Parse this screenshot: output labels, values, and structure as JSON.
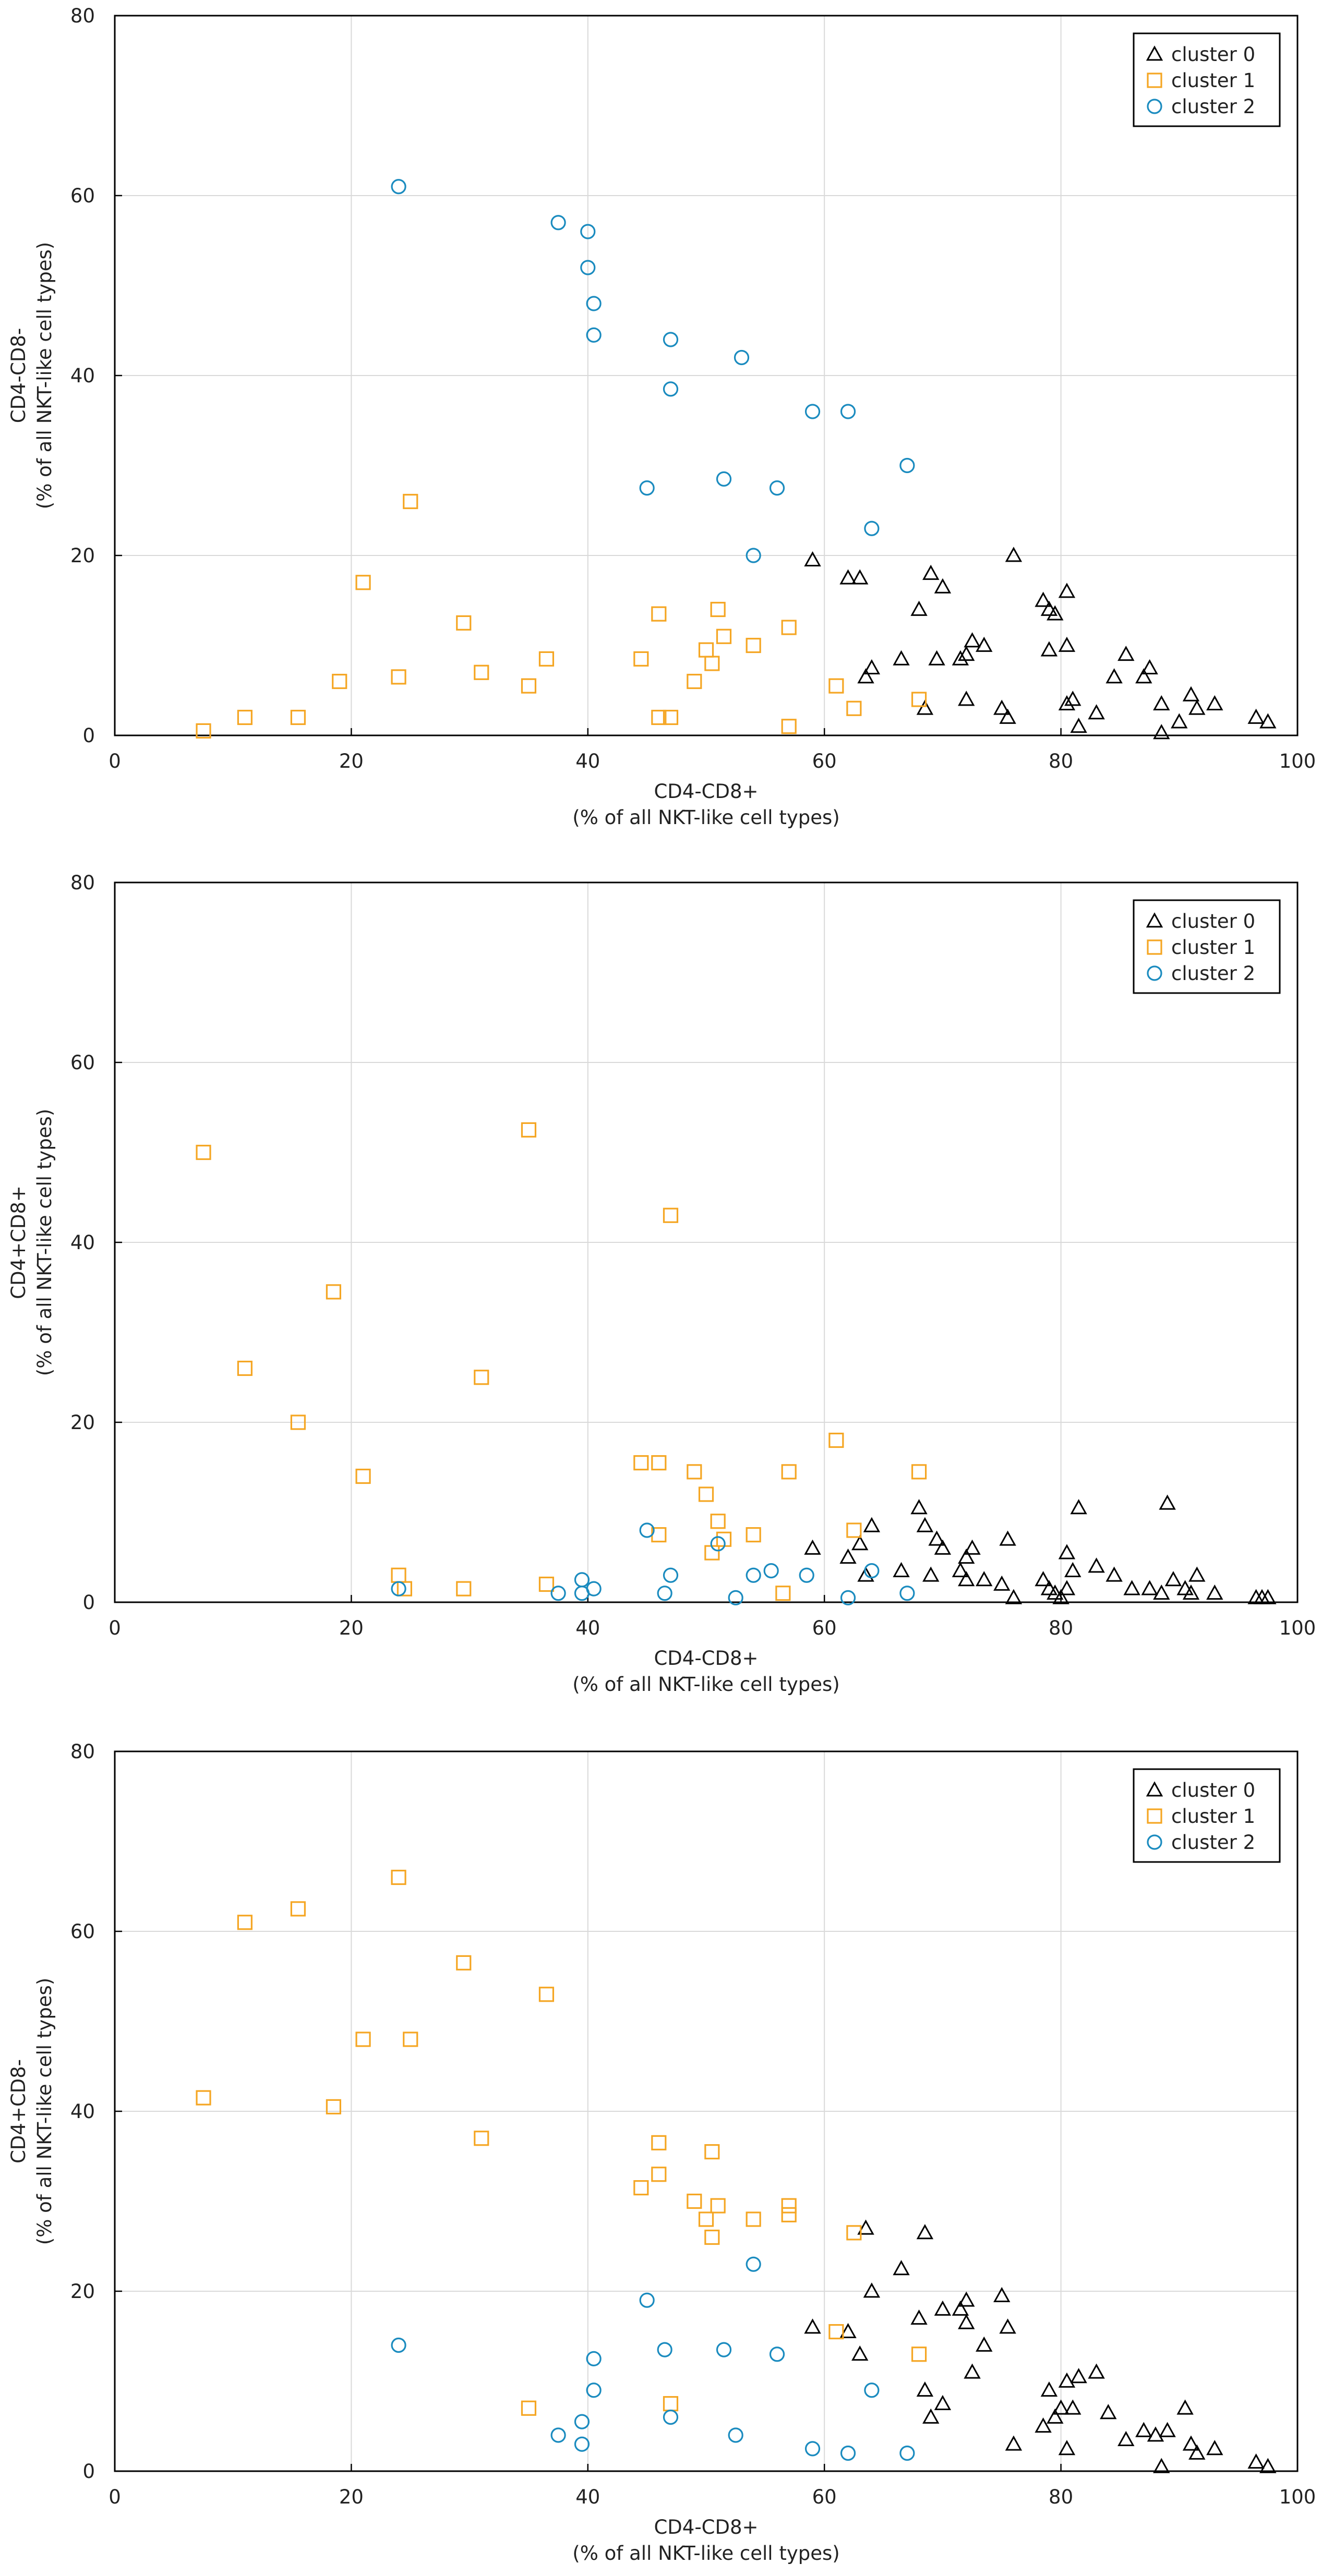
{
  "colors": {
    "cluster_0": "#000000",
    "cluster_1": "#f5a623",
    "cluster_2": "#1a8bbf",
    "grid": "#d9d9d9",
    "axis": "#000000"
  },
  "chart_data": [
    {
      "type": "scatter",
      "xlabel_line1": "CD4-CD8+",
      "xlabel_line2": "(% of all NKT-like cell types)",
      "ylabel_line1": "CD4-CD8-",
      "ylabel_line2": "(% of all NKT-like cell types)",
      "xlim": [
        0,
        100
      ],
      "ylim": [
        0,
        80
      ],
      "xticks": [
        0,
        20,
        40,
        60,
        80,
        100
      ],
      "yticks": [
        0,
        20,
        40,
        60,
        80
      ],
      "grid": true,
      "legend_position": "top-right",
      "series": [
        {
          "name": "cluster 0",
          "marker": "triangle",
          "points": [
            [
              59,
              19.5
            ],
            [
              62,
              17.5
            ],
            [
              63,
              17.5
            ],
            [
              63.5,
              6.5
            ],
            [
              64,
              7.5
            ],
            [
              66.5,
              8.5
            ],
            [
              68,
              14
            ],
            [
              68.5,
              3
            ],
            [
              69,
              18
            ],
            [
              69.5,
              8.5
            ],
            [
              70,
              16.5
            ],
            [
              71.5,
              8.5
            ],
            [
              72,
              9
            ],
            [
              72,
              4
            ],
            [
              72.5,
              10.5
            ],
            [
              73.5,
              10
            ],
            [
              75,
              3
            ],
            [
              75.5,
              2
            ],
            [
              76,
              20
            ],
            [
              78.5,
              15
            ],
            [
              79,
              14
            ],
            [
              79,
              9.5
            ],
            [
              79.5,
              13.5
            ],
            [
              80.5,
              10
            ],
            [
              80.5,
              16
            ],
            [
              80.5,
              3.5
            ],
            [
              81,
              4
            ],
            [
              81.5,
              1
            ],
            [
              83,
              2.5
            ],
            [
              84.5,
              6.5
            ],
            [
              85.5,
              9
            ],
            [
              87,
              6.5
            ],
            [
              87.5,
              7.5
            ],
            [
              88.5,
              0.3
            ],
            [
              88.5,
              3.5
            ],
            [
              90,
              1.5
            ],
            [
              91,
              4.5
            ],
            [
              91.5,
              3
            ],
            [
              93,
              3.5
            ],
            [
              96.5,
              2
            ],
            [
              97.5,
              1.5
            ]
          ]
        },
        {
          "name": "cluster 1",
          "marker": "square",
          "points": [
            [
              7.5,
              0.5
            ],
            [
              11,
              2
            ],
            [
              15.5,
              2
            ],
            [
              19,
              6
            ],
            [
              21,
              17
            ],
            [
              24,
              6.5
            ],
            [
              25,
              26
            ],
            [
              29.5,
              12.5
            ],
            [
              31,
              7
            ],
            [
              35,
              5.5
            ],
            [
              36.5,
              8.5
            ],
            [
              44.5,
              8.5
            ],
            [
              46,
              13.5
            ],
            [
              46,
              2
            ],
            [
              47,
              2
            ],
            [
              49,
              6
            ],
            [
              50,
              9.5
            ],
            [
              50.5,
              8
            ],
            [
              51,
              14
            ],
            [
              51.5,
              11
            ],
            [
              54,
              10
            ],
            [
              57,
              12
            ],
            [
              57,
              1
            ],
            [
              61,
              5.5
            ],
            [
              62.5,
              3
            ],
            [
              68,
              4
            ]
          ]
        },
        {
          "name": "cluster 2",
          "marker": "circle",
          "points": [
            [
              24,
              61
            ],
            [
              37.5,
              57
            ],
            [
              40,
              56
            ],
            [
              40,
              52
            ],
            [
              40.5,
              48
            ],
            [
              40.5,
              44.5
            ],
            [
              45,
              27.5
            ],
            [
              47,
              44
            ],
            [
              47,
              38.5
            ],
            [
              51.5,
              28.5
            ],
            [
              53,
              42
            ],
            [
              54,
              20
            ],
            [
              56,
              27.5
            ],
            [
              59,
              36
            ],
            [
              62,
              36
            ],
            [
              64,
              23
            ],
            [
              67,
              30
            ]
          ]
        }
      ]
    },
    {
      "type": "scatter",
      "xlabel_line1": "CD4-CD8+",
      "xlabel_line2": "(% of all NKT-like cell types)",
      "ylabel_line1": "CD4+CD8+",
      "ylabel_line2": "(% of all NKT-like cell types)",
      "xlim": [
        0,
        100
      ],
      "ylim": [
        0,
        80
      ],
      "xticks": [
        0,
        20,
        40,
        60,
        80,
        100
      ],
      "yticks": [
        0,
        20,
        40,
        60,
        80
      ],
      "grid": true,
      "legend_position": "top-right",
      "series": [
        {
          "name": "cluster 0",
          "marker": "triangle",
          "points": [
            [
              59,
              6
            ],
            [
              62,
              5
            ],
            [
              63,
              6.5
            ],
            [
              63.5,
              3
            ],
            [
              64,
              8.5
            ],
            [
              66.5,
              3.5
            ],
            [
              68,
              10.5
            ],
            [
              68.5,
              8.5
            ],
            [
              69,
              3
            ],
            [
              69.5,
              7
            ],
            [
              70,
              6
            ],
            [
              71.5,
              3.5
            ],
            [
              72,
              2.5
            ],
            [
              72,
              5
            ],
            [
              72.5,
              6
            ],
            [
              73.5,
              2.5
            ],
            [
              75,
              2
            ],
            [
              75.5,
              7
            ],
            [
              76,
              0.5
            ],
            [
              78.5,
              2.5
            ],
            [
              79,
              1.5
            ],
            [
              79.5,
              1
            ],
            [
              80,
              0.5
            ],
            [
              80.5,
              5.5
            ],
            [
              80.5,
              1.5
            ],
            [
              81,
              3.5
            ],
            [
              81.5,
              10.5
            ],
            [
              83,
              4
            ],
            [
              84.5,
              3
            ],
            [
              86,
              1.5
            ],
            [
              87.5,
              1.5
            ],
            [
              88.5,
              1
            ],
            [
              89,
              11
            ],
            [
              89.5,
              2.5
            ],
            [
              90.5,
              1.5
            ],
            [
              91,
              1
            ],
            [
              91.5,
              3
            ],
            [
              93,
              1
            ],
            [
              96.5,
              0.5
            ],
            [
              97,
              0.5
            ],
            [
              97.5,
              0.5
            ]
          ]
        },
        {
          "name": "cluster 1",
          "marker": "square",
          "points": [
            [
              7.5,
              50
            ],
            [
              11,
              26
            ],
            [
              15.5,
              20
            ],
            [
              18.5,
              34.5
            ],
            [
              21,
              14
            ],
            [
              24,
              3
            ],
            [
              24.5,
              1.5
            ],
            [
              29.5,
              1.5
            ],
            [
              31,
              25
            ],
            [
              35,
              52.5
            ],
            [
              36.5,
              2
            ],
            [
              44.5,
              15.5
            ],
            [
              46,
              15.5
            ],
            [
              46,
              7.5
            ],
            [
              47,
              43
            ],
            [
              49,
              14.5
            ],
            [
              50,
              12
            ],
            [
              50.5,
              5.5
            ],
            [
              51,
              9
            ],
            [
              51.5,
              7
            ],
            [
              54,
              7.5
            ],
            [
              56.5,
              1
            ],
            [
              57,
              14.5
            ],
            [
              61,
              18
            ],
            [
              62.5,
              8
            ],
            [
              68,
              14.5
            ]
          ]
        },
        {
          "name": "cluster 2",
          "marker": "circle",
          "points": [
            [
              24,
              1.5
            ],
            [
              37.5,
              1
            ],
            [
              39.5,
              2.5
            ],
            [
              39.5,
              1
            ],
            [
              40.5,
              1.5
            ],
            [
              45,
              8
            ],
            [
              46.5,
              1
            ],
            [
              47,
              3
            ],
            [
              51,
              6.5
            ],
            [
              52.5,
              0.5
            ],
            [
              54,
              3
            ],
            [
              55.5,
              3.5
            ],
            [
              58.5,
              3
            ],
            [
              62,
              0.5
            ],
            [
              64,
              3.5
            ],
            [
              67,
              1
            ]
          ]
        }
      ]
    },
    {
      "type": "scatter",
      "xlabel_line1": "CD4-CD8+",
      "xlabel_line2": "(% of all NKT-like cell types)",
      "ylabel_line1": "CD4+CD8-",
      "ylabel_line2": "(% of all NKT-like cell types)",
      "xlim": [
        0,
        100
      ],
      "ylim": [
        0,
        80
      ],
      "xticks": [
        0,
        20,
        40,
        60,
        80,
        100
      ],
      "yticks": [
        0,
        20,
        40,
        60,
        80
      ],
      "grid": true,
      "legend_position": "top-right",
      "series": [
        {
          "name": "cluster 0",
          "marker": "triangle",
          "points": [
            [
              59,
              16
            ],
            [
              62,
              15.5
            ],
            [
              63,
              13
            ],
            [
              63.5,
              27
            ],
            [
              64,
              20
            ],
            [
              66.5,
              22.5
            ],
            [
              68,
              17
            ],
            [
              68.5,
              9
            ],
            [
              68.5,
              26.5
            ],
            [
              69,
              6
            ],
            [
              70,
              7.5
            ],
            [
              70,
              18
            ],
            [
              71.5,
              18
            ],
            [
              72,
              16.5
            ],
            [
              72,
              19
            ],
            [
              72.5,
              11
            ],
            [
              73.5,
              14
            ],
            [
              75,
              19.5
            ],
            [
              75.5,
              16
            ],
            [
              76,
              3
            ],
            [
              78.5,
              5
            ],
            [
              79,
              9
            ],
            [
              79.5,
              6
            ],
            [
              80,
              7
            ],
            [
              80.5,
              10
            ],
            [
              80.5,
              2.5
            ],
            [
              81,
              7
            ],
            [
              81.5,
              10.5
            ],
            [
              83,
              11
            ],
            [
              84,
              6.5
            ],
            [
              85.5,
              3.5
            ],
            [
              87,
              4.5
            ],
            [
              88,
              4
            ],
            [
              88.5,
              0.5
            ],
            [
              89,
              4.5
            ],
            [
              90.5,
              7
            ],
            [
              91,
              3
            ],
            [
              91.5,
              2
            ],
            [
              93,
              2.5
            ],
            [
              96.5,
              1
            ],
            [
              97.5,
              0.5
            ]
          ]
        },
        {
          "name": "cluster 1",
          "marker": "square",
          "points": [
            [
              7.5,
              41.5
            ],
            [
              11,
              61
            ],
            [
              15.5,
              62.5
            ],
            [
              18.5,
              40.5
            ],
            [
              21,
              48
            ],
            [
              24,
              66
            ],
            [
              25,
              48
            ],
            [
              29.5,
              56.5
            ],
            [
              31,
              37
            ],
            [
              35,
              7
            ],
            [
              36.5,
              53
            ],
            [
              44.5,
              31.5
            ],
            [
              46,
              33
            ],
            [
              46,
              36.5
            ],
            [
              47,
              7.5
            ],
            [
              49,
              30
            ],
            [
              50,
              28
            ],
            [
              50.5,
              35.5
            ],
            [
              50.5,
              26
            ],
            [
              51,
              29.5
            ],
            [
              54,
              28
            ],
            [
              57,
              29.5
            ],
            [
              57,
              28.5
            ],
            [
              61,
              15.5
            ],
            [
              62.5,
              26.5
            ],
            [
              68,
              13
            ]
          ]
        },
        {
          "name": "cluster 2",
          "marker": "circle",
          "points": [
            [
              24,
              14
            ],
            [
              37.5,
              4
            ],
            [
              39.5,
              5.5
            ],
            [
              39.5,
              3
            ],
            [
              40.5,
              9
            ],
            [
              40.5,
              12.5
            ],
            [
              45,
              19
            ],
            [
              46.5,
              13.5
            ],
            [
              47,
              6
            ],
            [
              51.5,
              13.5
            ],
            [
              52.5,
              4
            ],
            [
              54,
              23
            ],
            [
              56,
              13
            ],
            [
              59,
              2.5
            ],
            [
              62,
              2
            ],
            [
              64,
              9
            ],
            [
              67,
              2
            ]
          ]
        }
      ]
    }
  ]
}
